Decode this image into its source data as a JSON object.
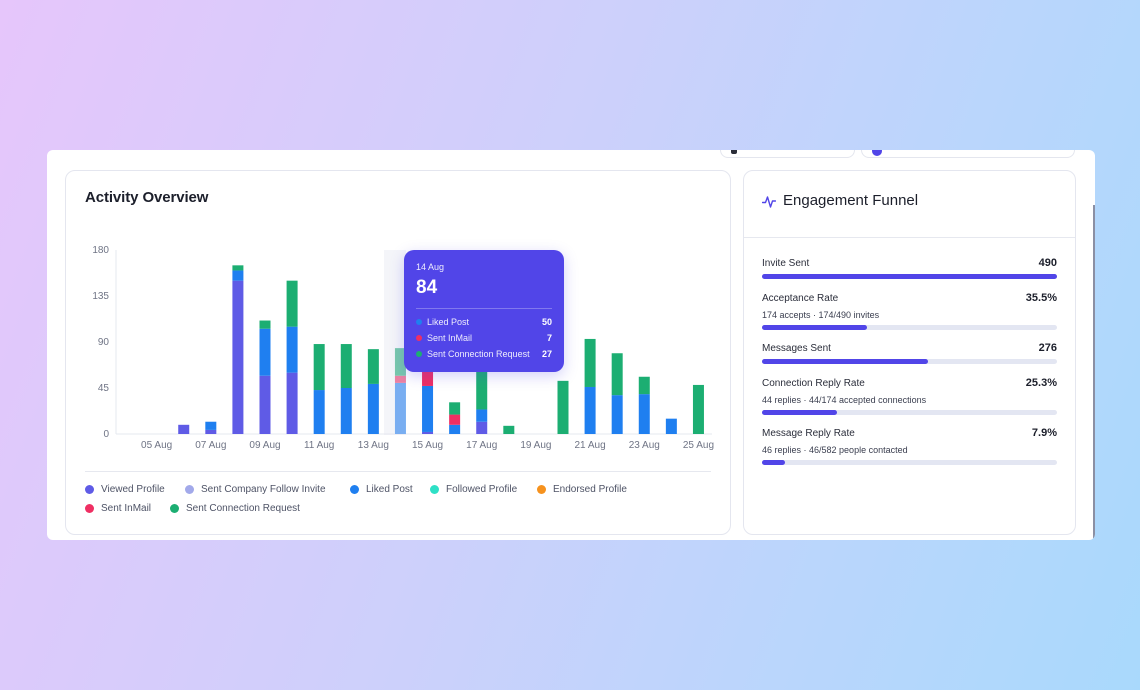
{
  "activity": {
    "title": "Activity Overview",
    "tooltip": {
      "date": "14 Aug",
      "total": "84",
      "rows": [
        {
          "label": "Liked Post",
          "value": "50",
          "color": "#1f7ff0"
        },
        {
          "label": "Sent InMail",
          "value": "7",
          "color": "#ef2f63"
        },
        {
          "label": "Sent Connection Request",
          "value": "27",
          "color": "#1cae72"
        }
      ]
    },
    "legend": [
      {
        "label": "Viewed Profile",
        "color": "#5f5be6"
      },
      {
        "label": "Sent Company Follow Invite",
        "color": "#a2a9ea"
      },
      {
        "label": "Liked Post",
        "color": "#1f7ff0"
      },
      {
        "label": "Followed Profile",
        "color": "#2ee0c6"
      },
      {
        "label": "Endorsed Profile",
        "color": "#f6921e"
      },
      {
        "label": "Sent InMail",
        "color": "#ef2f63"
      },
      {
        "label": "Sent Connection Request",
        "color": "#1cae72"
      }
    ]
  },
  "chart_data": {
    "type": "bar",
    "stacked": true,
    "title": "Activity Overview",
    "ylim": [
      0,
      180
    ],
    "yticks": [
      0,
      45,
      90,
      135,
      180
    ],
    "xtick_labels": [
      "05 Aug",
      "07 Aug",
      "09 Aug",
      "11 Aug",
      "13 Aug",
      "15 Aug",
      "17 Aug",
      "19 Aug",
      "21 Aug",
      "23 Aug",
      "25 Aug"
    ],
    "categories": [
      "04 Aug",
      "05 Aug",
      "06 Aug",
      "07 Aug",
      "08 Aug",
      "09 Aug",
      "10 Aug",
      "11 Aug",
      "12 Aug",
      "13 Aug",
      "14 Aug",
      "15 Aug",
      "16 Aug",
      "17 Aug",
      "18 Aug",
      "19 Aug",
      "20 Aug",
      "21 Aug",
      "22 Aug",
      "23 Aug",
      "24 Aug",
      "25 Aug"
    ],
    "series": [
      {
        "name": "Viewed Profile",
        "color": "#5f5be6",
        "values": [
          0,
          0,
          9,
          4,
          150,
          57,
          60,
          0,
          0,
          0,
          0,
          2,
          0,
          12,
          0,
          0,
          0,
          0,
          0,
          0,
          0,
          0
        ]
      },
      {
        "name": "Sent Company Follow Invite",
        "color": "#a2a9ea",
        "values": [
          0,
          0,
          0,
          0,
          0,
          0,
          0,
          0,
          0,
          0,
          0,
          0,
          0,
          0,
          0,
          0,
          0,
          0,
          0,
          0,
          0,
          0
        ]
      },
      {
        "name": "Liked Post",
        "color": "#1f7ff0",
        "values": [
          0,
          0,
          0,
          8,
          10,
          46,
          45,
          43,
          45,
          49,
          50,
          45,
          9,
          12,
          0,
          0,
          0,
          46,
          38,
          39,
          15,
          0
        ]
      },
      {
        "name": "Followed Profile",
        "color": "#2ee0c6",
        "values": [
          0,
          0,
          0,
          0,
          0,
          0,
          0,
          0,
          0,
          0,
          0,
          0,
          0,
          0,
          0,
          0,
          0,
          0,
          0,
          0,
          0,
          0
        ]
      },
      {
        "name": "Endorsed Profile",
        "color": "#f6921e",
        "values": [
          0,
          0,
          0,
          0,
          0,
          0,
          0,
          0,
          0,
          0,
          0,
          0,
          0,
          0,
          0,
          0,
          0,
          0,
          0,
          0,
          0,
          0
        ]
      },
      {
        "name": "Sent InMail",
        "color": "#ef2f63",
        "values": [
          0,
          0,
          0,
          0,
          0,
          0,
          0,
          0,
          0,
          0,
          7,
          15,
          10,
          0,
          0,
          0,
          0,
          0,
          0,
          0,
          0,
          0
        ]
      },
      {
        "name": "Sent Connection Request",
        "color": "#1cae72",
        "values": [
          0,
          0,
          0,
          0,
          5,
          8,
          45,
          45,
          43,
          34,
          27,
          0,
          12,
          40,
          8,
          0,
          52,
          47,
          41,
          17,
          0,
          48
        ]
      }
    ],
    "tooltip_category": "14 Aug",
    "legend_position": "bottom",
    "grid": false
  },
  "funnel": {
    "title": "Engagement Funnel",
    "icon": "activity-pulse-icon",
    "metrics": [
      {
        "name": "Invite Sent",
        "value": "490",
        "sub": "",
        "progress": 1.0
      },
      {
        "name": "Acceptance Rate",
        "value": "35.5%",
        "sub": "174 accepts · 174/490 invites",
        "progress": 0.355
      },
      {
        "name": "Messages Sent",
        "value": "276",
        "sub": "",
        "progress": 0.563
      },
      {
        "name": "Connection Reply Rate",
        "value": "25.3%",
        "sub": "44 replies · 44/174 accepted connections",
        "progress": 0.253
      },
      {
        "name": "Message Reply Rate",
        "value": "7.9%",
        "sub": "46 replies · 46/582 people contacted",
        "progress": 0.079
      }
    ]
  }
}
